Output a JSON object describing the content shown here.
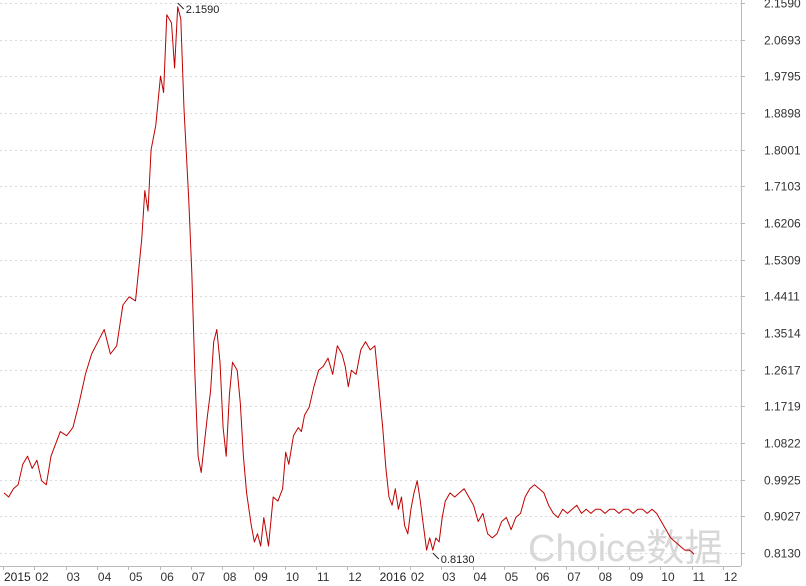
{
  "chart_data": {
    "type": "line",
    "title": "",
    "xlabel": "",
    "ylabel": "",
    "ylim": [
      0.813,
      2.159
    ],
    "y_ticks": [
      "0.8130",
      "0.9027",
      "0.9925",
      "1.0822",
      "1.1719",
      "1.2617",
      "1.3514",
      "1.4411",
      "1.5309",
      "1.6206",
      "1.7103",
      "1.8001",
      "1.8898",
      "1.9795",
      "2.0693",
      "2.1590"
    ],
    "x_ticks": [
      {
        "label": "2015",
        "year": true
      },
      {
        "label": "02",
        "year": false
      },
      {
        "label": "03",
        "year": false
      },
      {
        "label": "04",
        "year": false
      },
      {
        "label": "05",
        "year": false
      },
      {
        "label": "06",
        "year": false
      },
      {
        "label": "07",
        "year": false
      },
      {
        "label": "08",
        "year": false
      },
      {
        "label": "09",
        "year": false
      },
      {
        "label": "10",
        "year": false
      },
      {
        "label": "11",
        "year": false
      },
      {
        "label": "12",
        "year": false
      },
      {
        "label": "2016",
        "year": true
      },
      {
        "label": "02",
        "year": false
      },
      {
        "label": "03",
        "year": false
      },
      {
        "label": "04",
        "year": false
      },
      {
        "label": "05",
        "year": false
      },
      {
        "label": "06",
        "year": false
      },
      {
        "label": "07",
        "year": false
      },
      {
        "label": "08",
        "year": false
      },
      {
        "label": "09",
        "year": false
      },
      {
        "label": "10",
        "year": false
      },
      {
        "label": "11",
        "year": false
      },
      {
        "label": "12",
        "year": false
      }
    ],
    "x_unit": "month index from 2015-01 (0 = Jan 2015, 23 = Dec 2016)",
    "series": [
      {
        "color": "#c00000",
        "points": [
          [
            0.0,
            0.96
          ],
          [
            0.15,
            0.95
          ],
          [
            0.3,
            0.97
          ],
          [
            0.45,
            0.98
          ],
          [
            0.6,
            1.03
          ],
          [
            0.75,
            1.05
          ],
          [
            0.9,
            1.02
          ],
          [
            1.05,
            1.04
          ],
          [
            1.2,
            0.99
          ],
          [
            1.35,
            0.98
          ],
          [
            1.5,
            1.05
          ],
          [
            1.65,
            1.08
          ],
          [
            1.8,
            1.11
          ],
          [
            2.0,
            1.1
          ],
          [
            2.2,
            1.12
          ],
          [
            2.4,
            1.18
          ],
          [
            2.6,
            1.25
          ],
          [
            2.8,
            1.3
          ],
          [
            3.0,
            1.33
          ],
          [
            3.2,
            1.36
          ],
          [
            3.4,
            1.3
          ],
          [
            3.6,
            1.32
          ],
          [
            3.8,
            1.42
          ],
          [
            4.0,
            1.44
          ],
          [
            4.2,
            1.43
          ],
          [
            4.4,
            1.58
          ],
          [
            4.5,
            1.7
          ],
          [
            4.6,
            1.65
          ],
          [
            4.7,
            1.8
          ],
          [
            4.85,
            1.86
          ],
          [
            5.0,
            1.98
          ],
          [
            5.1,
            1.94
          ],
          [
            5.2,
            2.13
          ],
          [
            5.35,
            2.11
          ],
          [
            5.45,
            2.0
          ],
          [
            5.55,
            2.15
          ],
          [
            5.65,
            2.12
          ],
          [
            5.75,
            1.9
          ],
          [
            5.9,
            1.68
          ],
          [
            6.0,
            1.5
          ],
          [
            6.1,
            1.25
          ],
          [
            6.2,
            1.05
          ],
          [
            6.3,
            1.01
          ],
          [
            6.4,
            1.08
          ],
          [
            6.5,
            1.15
          ],
          [
            6.6,
            1.21
          ],
          [
            6.7,
            1.33
          ],
          [
            6.8,
            1.36
          ],
          [
            6.9,
            1.28
          ],
          [
            7.0,
            1.12
          ],
          [
            7.1,
            1.05
          ],
          [
            7.2,
            1.2
          ],
          [
            7.3,
            1.28
          ],
          [
            7.45,
            1.26
          ],
          [
            7.55,
            1.18
          ],
          [
            7.65,
            1.05
          ],
          [
            7.75,
            0.96
          ],
          [
            7.9,
            0.88
          ],
          [
            8.0,
            0.84
          ],
          [
            8.1,
            0.86
          ],
          [
            8.2,
            0.83
          ],
          [
            8.3,
            0.9
          ],
          [
            8.45,
            0.83
          ],
          [
            8.6,
            0.95
          ],
          [
            8.75,
            0.94
          ],
          [
            8.9,
            0.97
          ],
          [
            9.0,
            1.06
          ],
          [
            9.1,
            1.03
          ],
          [
            9.25,
            1.1
          ],
          [
            9.4,
            1.12
          ],
          [
            9.5,
            1.11
          ],
          [
            9.6,
            1.15
          ],
          [
            9.75,
            1.17
          ],
          [
            9.9,
            1.22
          ],
          [
            10.05,
            1.26
          ],
          [
            10.2,
            1.27
          ],
          [
            10.35,
            1.29
          ],
          [
            10.5,
            1.25
          ],
          [
            10.65,
            1.32
          ],
          [
            10.8,
            1.3
          ],
          [
            10.9,
            1.27
          ],
          [
            11.0,
            1.22
          ],
          [
            11.1,
            1.26
          ],
          [
            11.25,
            1.25
          ],
          [
            11.4,
            1.31
          ],
          [
            11.55,
            1.33
          ],
          [
            11.7,
            1.31
          ],
          [
            11.85,
            1.32
          ],
          [
            12.0,
            1.2
          ],
          [
            12.1,
            1.12
          ],
          [
            12.2,
            1.02
          ],
          [
            12.3,
            0.95
          ],
          [
            12.4,
            0.93
          ],
          [
            12.5,
            0.97
          ],
          [
            12.6,
            0.92
          ],
          [
            12.7,
            0.95
          ],
          [
            12.8,
            0.88
          ],
          [
            12.9,
            0.86
          ],
          [
            13.0,
            0.92
          ],
          [
            13.1,
            0.96
          ],
          [
            13.2,
            0.99
          ],
          [
            13.3,
            0.94
          ],
          [
            13.4,
            0.88
          ],
          [
            13.5,
            0.82
          ],
          [
            13.6,
            0.85
          ],
          [
            13.7,
            0.82
          ],
          [
            13.8,
            0.85
          ],
          [
            13.9,
            0.84
          ],
          [
            14.0,
            0.9
          ],
          [
            14.1,
            0.94
          ],
          [
            14.25,
            0.96
          ],
          [
            14.4,
            0.95
          ],
          [
            14.55,
            0.96
          ],
          [
            14.7,
            0.97
          ],
          [
            14.85,
            0.95
          ],
          [
            15.0,
            0.93
          ],
          [
            15.15,
            0.89
          ],
          [
            15.3,
            0.91
          ],
          [
            15.45,
            0.86
          ],
          [
            15.6,
            0.85
          ],
          [
            15.75,
            0.86
          ],
          [
            15.9,
            0.89
          ],
          [
            16.05,
            0.9
          ],
          [
            16.2,
            0.87
          ],
          [
            16.35,
            0.9
          ],
          [
            16.5,
            0.91
          ],
          [
            16.65,
            0.95
          ],
          [
            16.8,
            0.97
          ],
          [
            16.95,
            0.98
          ],
          [
            17.1,
            0.97
          ],
          [
            17.25,
            0.96
          ],
          [
            17.4,
            0.93
          ],
          [
            17.55,
            0.91
          ],
          [
            17.7,
            0.9
          ],
          [
            17.85,
            0.92
          ],
          [
            18.0,
            0.91
          ],
          [
            18.15,
            0.92
          ],
          [
            18.3,
            0.93
          ],
          [
            18.45,
            0.91
          ],
          [
            18.6,
            0.92
          ],
          [
            18.75,
            0.91
          ],
          [
            18.9,
            0.92
          ],
          [
            19.05,
            0.92
          ],
          [
            19.2,
            0.91
          ],
          [
            19.35,
            0.92
          ],
          [
            19.5,
            0.92
          ],
          [
            19.65,
            0.91
          ],
          [
            19.8,
            0.92
          ],
          [
            19.95,
            0.92
          ],
          [
            20.1,
            0.91
          ],
          [
            20.25,
            0.92
          ],
          [
            20.4,
            0.92
          ],
          [
            20.55,
            0.91
          ],
          [
            20.7,
            0.92
          ],
          [
            20.85,
            0.91
          ],
          [
            21.0,
            0.89
          ],
          [
            21.15,
            0.87
          ],
          [
            21.3,
            0.85
          ],
          [
            21.45,
            0.84
          ],
          [
            21.6,
            0.83
          ],
          [
            21.75,
            0.82
          ],
          [
            21.9,
            0.82
          ],
          [
            22.05,
            0.81
          ]
        ]
      }
    ],
    "annotations": [
      {
        "text": "2.1590",
        "x": 5.55,
        "y": 2.159
      },
      {
        "text": "0.8130",
        "x": 13.7,
        "y": 0.813
      }
    ],
    "grid": true,
    "watermark": "Choice数据"
  }
}
